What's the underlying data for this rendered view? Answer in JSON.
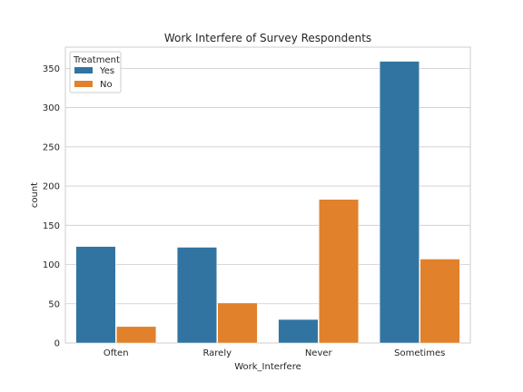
{
  "chart_data": {
    "type": "bar",
    "title": "Work Interfere of Survey Respondents",
    "xlabel": "Work_Interfere",
    "ylabel": "count",
    "categories": [
      "Often",
      "Rarely",
      "Never",
      "Sometimes"
    ],
    "series": [
      {
        "name": "Yes",
        "color": "#3274a1",
        "values": [
          123,
          122,
          30,
          359
        ]
      },
      {
        "name": "No",
        "color": "#e1812c",
        "values": [
          21,
          51,
          183,
          107
        ]
      }
    ],
    "ylim": [
      0,
      377
    ],
    "yticks": [
      0,
      50,
      100,
      150,
      200,
      250,
      300,
      350
    ],
    "grid": "horizontal",
    "legend": {
      "title": "Treatment",
      "placement": "top-left"
    }
  }
}
